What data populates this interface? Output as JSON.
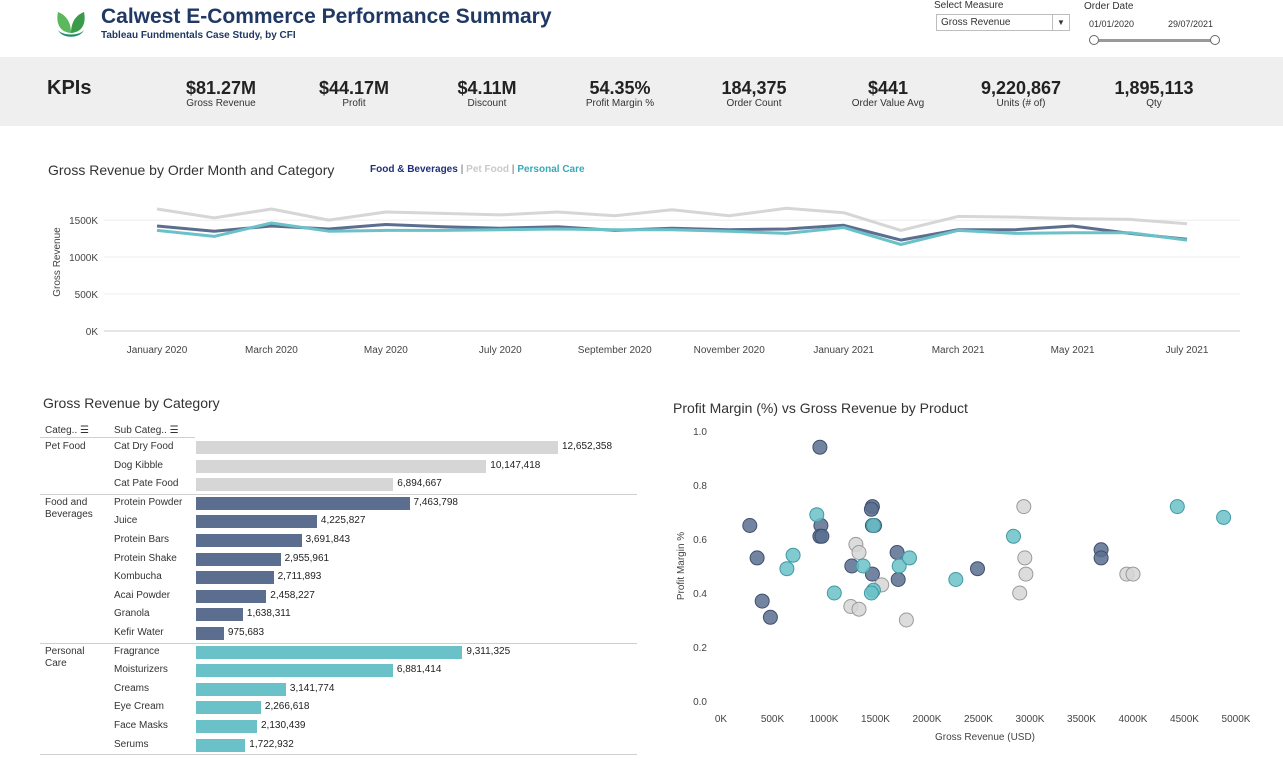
{
  "header": {
    "title": "Calwest E-Commerce Performance Summary",
    "subtitle": "Tableau Fundmentals Case Study, by CFI",
    "logo_icon": "leaf-logo-icon"
  },
  "filters": {
    "measure_label": "Select Measure",
    "measure_value": "Gross Revenue",
    "date_label": "Order Date",
    "date_start": "01/01/2020",
    "date_end": "29/07/2021"
  },
  "kpis": {
    "title": "KPIs",
    "items": [
      {
        "value": "$81.27M",
        "label": "Gross Revenue"
      },
      {
        "value": "$44.17M",
        "label": "Profit"
      },
      {
        "value": "$4.11M",
        "label": "Discount"
      },
      {
        "value": "54.35%",
        "label": "Profit Margin %"
      },
      {
        "value": "184,375",
        "label": "Order Count"
      },
      {
        "value": "$441",
        "label": "Order Value Avg"
      },
      {
        "value": "9,220,867",
        "label": "Units (# of)"
      },
      {
        "value": "1,895,113",
        "label": "Qty"
      }
    ]
  },
  "colors": {
    "food": "#5b6e90",
    "pet": "#d6d6d6",
    "personal": "#6bc1c8",
    "title": "#1f3864"
  },
  "line_chart": {
    "title": "Gross Revenue by Order Month and Category",
    "legend": [
      "Food & Beverages",
      "Pet Food",
      "Personal Care"
    ],
    "legend_sep": " | ",
    "ylabel": "Gross Revenue",
    "yticks": [
      "0K",
      "500K",
      "1000K",
      "1500K"
    ],
    "xticks": [
      "January 2020",
      "March 2020",
      "May 2020",
      "July 2020",
      "September 2020",
      "November 2020",
      "January 2021",
      "March 2021",
      "May 2021",
      "July 2021"
    ]
  },
  "bar_chart": {
    "title": "Gross Revenue by Category",
    "col_category": "Categ..",
    "col_subcategory": "Sub Categ..",
    "sort_icon": "sort-icon",
    "groups": [
      {
        "category": "Pet Food",
        "rows": [
          {
            "sub": "Cat Dry Food",
            "value": 12652358,
            "label": "12,652,358"
          },
          {
            "sub": "Dog Kibble",
            "value": 10147418,
            "label": "10,147,418"
          },
          {
            "sub": "Cat Pate Food",
            "value": 6894667,
            "label": "6,894,667"
          }
        ]
      },
      {
        "category": "Food and Beverages",
        "rows": [
          {
            "sub": "Protein Powder",
            "value": 7463798,
            "label": "7,463,798"
          },
          {
            "sub": "Juice",
            "value": 4225827,
            "label": "4,225,827"
          },
          {
            "sub": "Protein Bars",
            "value": 3691843,
            "label": "3,691,843"
          },
          {
            "sub": "Protein Shake",
            "value": 2955961,
            "label": "2,955,961"
          },
          {
            "sub": "Kombucha",
            "value": 2711893,
            "label": "2,711,893"
          },
          {
            "sub": "Acai Powder",
            "value": 2458227,
            "label": "2,458,227"
          },
          {
            "sub": "Granola",
            "value": 1638311,
            "label": "1,638,311"
          },
          {
            "sub": "Kefir Water",
            "value": 975683,
            "label": "975,683"
          }
        ]
      },
      {
        "category": "Personal Care",
        "rows": [
          {
            "sub": "Fragrance",
            "value": 9311325,
            "label": "9,311,325"
          },
          {
            "sub": "Moisturizers",
            "value": 6881414,
            "label": "6,881,414"
          },
          {
            "sub": "Creams",
            "value": 3141774,
            "label": "3,141,774"
          },
          {
            "sub": "Eye Cream",
            "value": 2266618,
            "label": "2,266,618"
          },
          {
            "sub": "Face Masks",
            "value": 2130439,
            "label": "2,130,439"
          },
          {
            "sub": "Serums",
            "value": 1722932,
            "label": "1,722,932"
          }
        ]
      }
    ]
  },
  "scatter": {
    "title": "Profit Margin (%) vs Gross Revenue by Product",
    "xlabel": "Gross Revenue (USD)",
    "ylabel": "Profit Margin %",
    "xticks": [
      "0K",
      "500K",
      "1000K",
      "1500K",
      "2000K",
      "2500K",
      "3000K",
      "3500K",
      "4000K",
      "4500K",
      "5000K"
    ],
    "yticks": [
      "0.0",
      "0.2",
      "0.4",
      "0.6",
      "0.8",
      "1.0"
    ]
  },
  "chart_data": [
    {
      "type": "line",
      "title": "Gross Revenue by Order Month and Category",
      "ylabel": "Gross Revenue",
      "ylim": [
        0,
        1650
      ],
      "y_unit": "K",
      "x": [
        "Jan 2020",
        "Feb 2020",
        "Mar 2020",
        "Apr 2020",
        "May 2020",
        "Jun 2020",
        "Jul 2020",
        "Aug 2020",
        "Sep 2020",
        "Oct 2020",
        "Nov 2020",
        "Dec 2020",
        "Jan 2021",
        "Feb 2021",
        "Mar 2021",
        "Apr 2021",
        "May 2021",
        "Jun 2021",
        "Jul 2021"
      ],
      "series": [
        {
          "name": "Pet Food",
          "color": "#d6d6d6",
          "values": [
            1650,
            1530,
            1650,
            1500,
            1610,
            1590,
            1570,
            1610,
            1560,
            1640,
            1560,
            1660,
            1600,
            1360,
            1550,
            1540,
            1520,
            1510,
            1450
          ]
        },
        {
          "name": "Food & Beverages",
          "color": "#5b6e90",
          "values": [
            1420,
            1350,
            1420,
            1380,
            1440,
            1410,
            1390,
            1410,
            1360,
            1390,
            1370,
            1380,
            1430,
            1230,
            1370,
            1370,
            1420,
            1320,
            1240
          ]
        },
        {
          "name": "Personal Care",
          "color": "#6bc1c8",
          "values": [
            1360,
            1280,
            1460,
            1350,
            1360,
            1360,
            1370,
            1380,
            1370,
            1370,
            1350,
            1320,
            1400,
            1170,
            1360,
            1320,
            1330,
            1330,
            1230
          ]
        }
      ]
    },
    {
      "type": "bar",
      "title": "Gross Revenue by Category",
      "categories": [
        "Cat Dry Food",
        "Dog Kibble",
        "Cat Pate Food",
        "Protein Powder",
        "Juice",
        "Protein Bars",
        "Protein Shake",
        "Kombucha",
        "Acai Powder",
        "Granola",
        "Kefir Water",
        "Fragrance",
        "Moisturizers",
        "Creams",
        "Eye Cream",
        "Face Masks",
        "Serums"
      ],
      "values": [
        12652358,
        10147418,
        6894667,
        7463798,
        4225827,
        3691843,
        2955961,
        2711893,
        2458227,
        1638311,
        975683,
        9311325,
        6881414,
        3141774,
        2266618,
        2130439,
        1722932
      ]
    },
    {
      "type": "scatter",
      "title": "Profit Margin (%) vs Gross Revenue by Product",
      "xlabel": "Gross Revenue (USD)",
      "ylabel": "Profit Margin %",
      "xlim": [
        0,
        5000
      ],
      "x_unit": "K",
      "ylim": [
        0,
        1.0
      ],
      "series": [
        {
          "name": "Food & Beverages",
          "color": "#5b6e90",
          "points": [
            [
              280,
              0.65
            ],
            [
              350,
              0.53
            ],
            [
              400,
              0.37
            ],
            [
              480,
              0.31
            ],
            [
              960,
              0.94
            ],
            [
              970,
              0.65
            ],
            [
              960,
              0.61
            ],
            [
              980,
              0.61
            ],
            [
              1270,
              0.5
            ],
            [
              1470,
              0.72
            ],
            [
              1460,
              0.71
            ],
            [
              1470,
              0.65
            ],
            [
              1490,
              0.65
            ],
            [
              1470,
              0.47
            ],
            [
              1710,
              0.55
            ],
            [
              1720,
              0.45
            ],
            [
              2490,
              0.49
            ],
            [
              3690,
              0.56
            ],
            [
              3690,
              0.53
            ]
          ]
        },
        {
          "name": "Pet Food",
          "color": "#d6d6d6",
          "points": [
            [
              1310,
              0.58
            ],
            [
              1340,
              0.55
            ],
            [
              1260,
              0.35
            ],
            [
              1340,
              0.34
            ],
            [
              1560,
              0.43
            ],
            [
              1800,
              0.3
            ],
            [
              2940,
              0.72
            ],
            [
              2950,
              0.53
            ],
            [
              2960,
              0.47
            ],
            [
              2900,
              0.4
            ],
            [
              3940,
              0.47
            ],
            [
              4000,
              0.47
            ]
          ]
        },
        {
          "name": "Personal Care",
          "color": "#6bc1c8",
          "points": [
            [
              930,
              0.69
            ],
            [
              700,
              0.54
            ],
            [
              640,
              0.49
            ],
            [
              1100,
              0.4
            ],
            [
              1380,
              0.5
            ],
            [
              1480,
              0.41
            ],
            [
              1460,
              0.4
            ],
            [
              1480,
              0.65
            ],
            [
              1730,
              0.5
            ],
            [
              1830,
              0.53
            ],
            [
              2280,
              0.45
            ],
            [
              2840,
              0.61
            ],
            [
              4430,
              0.72
            ],
            [
              4880,
              0.68
            ]
          ]
        }
      ]
    }
  ]
}
